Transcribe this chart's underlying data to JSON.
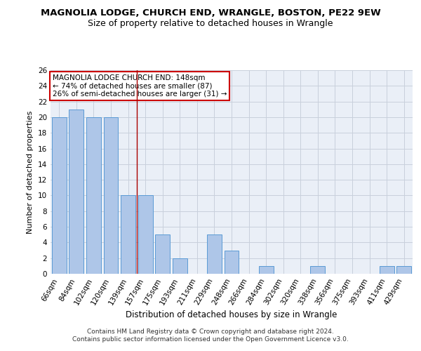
{
  "title": "MAGNOLIA LODGE, CHURCH END, WRANGLE, BOSTON, PE22 9EW",
  "subtitle": "Size of property relative to detached houses in Wrangle",
  "xlabel": "Distribution of detached houses by size in Wrangle",
  "ylabel": "Number of detached properties",
  "categories": [
    "66sqm",
    "84sqm",
    "102sqm",
    "120sqm",
    "139sqm",
    "157sqm",
    "175sqm",
    "193sqm",
    "211sqm",
    "229sqm",
    "248sqm",
    "266sqm",
    "284sqm",
    "302sqm",
    "320sqm",
    "338sqm",
    "356sqm",
    "375sqm",
    "393sqm",
    "411sqm",
    "429sqm"
  ],
  "values": [
    20,
    21,
    20,
    20,
    10,
    10,
    5,
    2,
    0,
    5,
    3,
    0,
    1,
    0,
    0,
    1,
    0,
    0,
    0,
    1,
    1
  ],
  "bar_color": "#aec6e8",
  "bar_edge_color": "#5b9bd5",
  "ylim": [
    0,
    26
  ],
  "yticks": [
    0,
    2,
    4,
    6,
    8,
    10,
    12,
    14,
    16,
    18,
    20,
    22,
    24,
    26
  ],
  "property_line_x": 4.5,
  "annotation_text": "MAGNOLIA LODGE CHURCH END: 148sqm\n← 74% of detached houses are smaller (87)\n26% of semi-detached houses are larger (31) →",
  "annotation_box_color": "#ffffff",
  "annotation_box_edge_color": "#cc0000",
  "vline_color": "#aa0000",
  "grid_color": "#c8d0dc",
  "background_color": "#eaeff7",
  "footer_text": "Contains HM Land Registry data © Crown copyright and database right 2024.\nContains public sector information licensed under the Open Government Licence v3.0.",
  "title_fontsize": 9.5,
  "subtitle_fontsize": 9,
  "xlabel_fontsize": 8.5,
  "ylabel_fontsize": 8,
  "tick_fontsize": 7.5,
  "annotation_fontsize": 7.5,
  "footer_fontsize": 6.5
}
